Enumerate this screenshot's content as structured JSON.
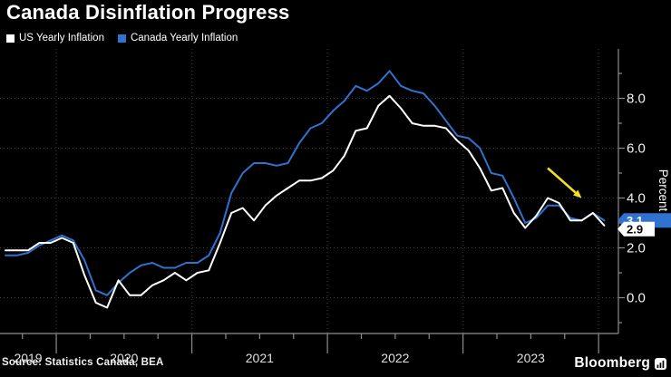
{
  "header": {
    "title": "Canada Disinflation Progress"
  },
  "legend": [
    {
      "label": "Canada Yearly Inflation",
      "color": "#ffffff"
    },
    {
      "label": "US Yearly Inflation",
      "color": "#2f72cf"
    }
  ],
  "footer": {
    "source": "Source: Statistics Canada, BEA",
    "brand": "Bloomberg"
  },
  "chart_data": {
    "type": "line",
    "title": "Canada Disinflation Progress",
    "ylabel": "Percent",
    "ylim": [
      -1.4,
      10
    ],
    "grid": true,
    "legend_position": "top-left",
    "background": "#000000",
    "grid_color": "#3c3c3c",
    "axis_color": "#8c8c8c",
    "x_tick_label_color": "#e0e0e0",
    "y_tick_label_color": "#f2f2f2",
    "x": [
      "2019-08",
      "2019-09",
      "2019-10",
      "2019-11",
      "2019-12",
      "2020-01",
      "2020-02",
      "2020-03",
      "2020-04",
      "2020-05",
      "2020-06",
      "2020-07",
      "2020-08",
      "2020-09",
      "2020-10",
      "2020-11",
      "2020-12",
      "2021-01",
      "2021-02",
      "2021-03",
      "2021-04",
      "2021-05",
      "2021-06",
      "2021-07",
      "2021-08",
      "2021-09",
      "2021-10",
      "2021-11",
      "2021-12",
      "2022-01",
      "2022-02",
      "2022-03",
      "2022-04",
      "2022-05",
      "2022-06",
      "2022-07",
      "2022-08",
      "2022-09",
      "2022-10",
      "2022-11",
      "2022-12",
      "2023-01",
      "2023-02",
      "2023-03",
      "2023-04",
      "2023-05",
      "2023-06",
      "2023-07",
      "2023-08",
      "2023-09",
      "2023-10",
      "2023-11",
      "2023-12",
      "2024-01"
    ],
    "x_tick_labels": [
      "2019",
      "2020",
      "2021",
      "2022",
      "2023"
    ],
    "y_tick_values": [
      0,
      2,
      4,
      6,
      8
    ],
    "y_tick_labels": [
      "0.0",
      "2.0",
      "4.0",
      "6.0",
      "8.0"
    ],
    "y_minor_tick_values": [
      -1,
      1,
      3,
      5,
      7,
      9
    ],
    "series": [
      {
        "name": "US Yearly Inflation",
        "color": "#2f72cf",
        "values": [
          1.7,
          1.7,
          1.8,
          2.1,
          2.3,
          2.5,
          2.3,
          1.5,
          0.3,
          0.1,
          0.6,
          1.0,
          1.3,
          1.4,
          1.2,
          1.2,
          1.4,
          1.4,
          1.7,
          2.6,
          4.2,
          5.0,
          5.4,
          5.4,
          5.3,
          5.4,
          6.2,
          6.8,
          7.0,
          7.5,
          7.9,
          8.5,
          8.3,
          8.6,
          9.1,
          8.5,
          8.3,
          8.2,
          7.7,
          7.1,
          6.5,
          6.4,
          6.0,
          5.0,
          4.9,
          4.0,
          3.0,
          3.2,
          3.7,
          3.7,
          3.2,
          3.1,
          3.4,
          3.1
        ]
      },
      {
        "name": "Canada Yearly Inflation",
        "color": "#ffffff",
        "values": [
          1.9,
          1.9,
          1.9,
          2.2,
          2.2,
          2.4,
          2.2,
          0.9,
          -0.2,
          -0.4,
          0.7,
          0.1,
          0.1,
          0.5,
          0.7,
          1.0,
          0.7,
          1.0,
          1.1,
          2.2,
          3.4,
          3.6,
          3.1,
          3.7,
          4.1,
          4.4,
          4.7,
          4.7,
          4.8,
          5.1,
          5.7,
          6.7,
          6.8,
          7.7,
          8.1,
          7.6,
          7.0,
          6.9,
          6.9,
          6.8,
          6.3,
          5.9,
          5.2,
          4.3,
          4.4,
          3.4,
          2.8,
          3.3,
          4.0,
          3.8,
          3.1,
          3.1,
          3.4,
          2.9
        ]
      }
    ],
    "end_labels": [
      {
        "series": "US Yearly Inflation",
        "text": "3.1",
        "value": 3.1,
        "bg": "#2f72cf",
        "fg": "#ffffff",
        "dy": 0,
        "body_width": 53
      },
      {
        "series": "Canada Yearly Inflation",
        "text": "2.9",
        "value": 2.9,
        "bg": "#ffffff",
        "fg": "#000000",
        "dy": 4,
        "body_width": 34
      }
    ],
    "annotations": [
      {
        "type": "arrow",
        "color": "#f2e11c",
        "from_x": "2023-08",
        "from_y": 5.2,
        "to_x": "2023-11",
        "to_y": 4.0
      }
    ]
  }
}
